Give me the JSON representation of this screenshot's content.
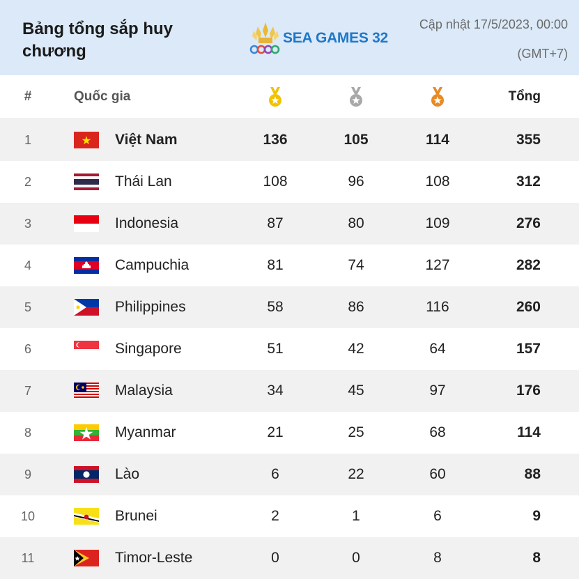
{
  "header": {
    "title": "Bảng tổng sắp huy chương",
    "logo_text": "SEA GAMES 32",
    "updated": "Cập nhật 17/5/2023, 00:00",
    "timezone": "(GMT+7)"
  },
  "table": {
    "columns": {
      "rank": "#",
      "country": "Quốc gia",
      "gold_icon": "gold-medal-icon",
      "silver_icon": "silver-medal-icon",
      "bronze_icon": "bronze-medal-icon",
      "total": "Tổng"
    },
    "rows": [
      {
        "rank": "1",
        "country": "Việt Nam",
        "gold": "136",
        "silver": "105",
        "bronze": "114",
        "total": "355",
        "flag": "vietnam-flag-icon"
      },
      {
        "rank": "2",
        "country": "Thái Lan",
        "gold": "108",
        "silver": "96",
        "bronze": "108",
        "total": "312",
        "flag": "thailand-flag-icon"
      },
      {
        "rank": "3",
        "country": "Indonesia",
        "gold": "87",
        "silver": "80",
        "bronze": "109",
        "total": "276",
        "flag": "indonesia-flag-icon"
      },
      {
        "rank": "4",
        "country": "Campuchia",
        "gold": "81",
        "silver": "74",
        "bronze": "127",
        "total": "282",
        "flag": "cambodia-flag-icon"
      },
      {
        "rank": "5",
        "country": "Philippines",
        "gold": "58",
        "silver": "86",
        "bronze": "116",
        "total": "260",
        "flag": "philippines-flag-icon"
      },
      {
        "rank": "6",
        "country": "Singapore",
        "gold": "51",
        "silver": "42",
        "bronze": "64",
        "total": "157",
        "flag": "singapore-flag-icon"
      },
      {
        "rank": "7",
        "country": "Malaysia",
        "gold": "34",
        "silver": "45",
        "bronze": "97",
        "total": "176",
        "flag": "malaysia-flag-icon"
      },
      {
        "rank": "8",
        "country": "Myanmar",
        "gold": "21",
        "silver": "25",
        "bronze": "68",
        "total": "114",
        "flag": "myanmar-flag-icon"
      },
      {
        "rank": "9",
        "country": "Lào",
        "gold": "6",
        "silver": "22",
        "bronze": "60",
        "total": "88",
        "flag": "laos-flag-icon"
      },
      {
        "rank": "10",
        "country": "Brunei",
        "gold": "2",
        "silver": "1",
        "bronze": "6",
        "total": "9",
        "flag": "brunei-flag-icon"
      },
      {
        "rank": "11",
        "country": "Timor-Leste",
        "gold": "0",
        "silver": "0",
        "bronze": "8",
        "total": "8",
        "flag": "timor-leste-flag-icon"
      }
    ]
  },
  "colors": {
    "header_bg": "#dbe9f8",
    "alt_row_bg": "#f1f1f1",
    "gold": "#f2c200",
    "silver": "#a8a8a8",
    "bronze": "#e98a24",
    "logo_blue": "#1f78c8"
  }
}
